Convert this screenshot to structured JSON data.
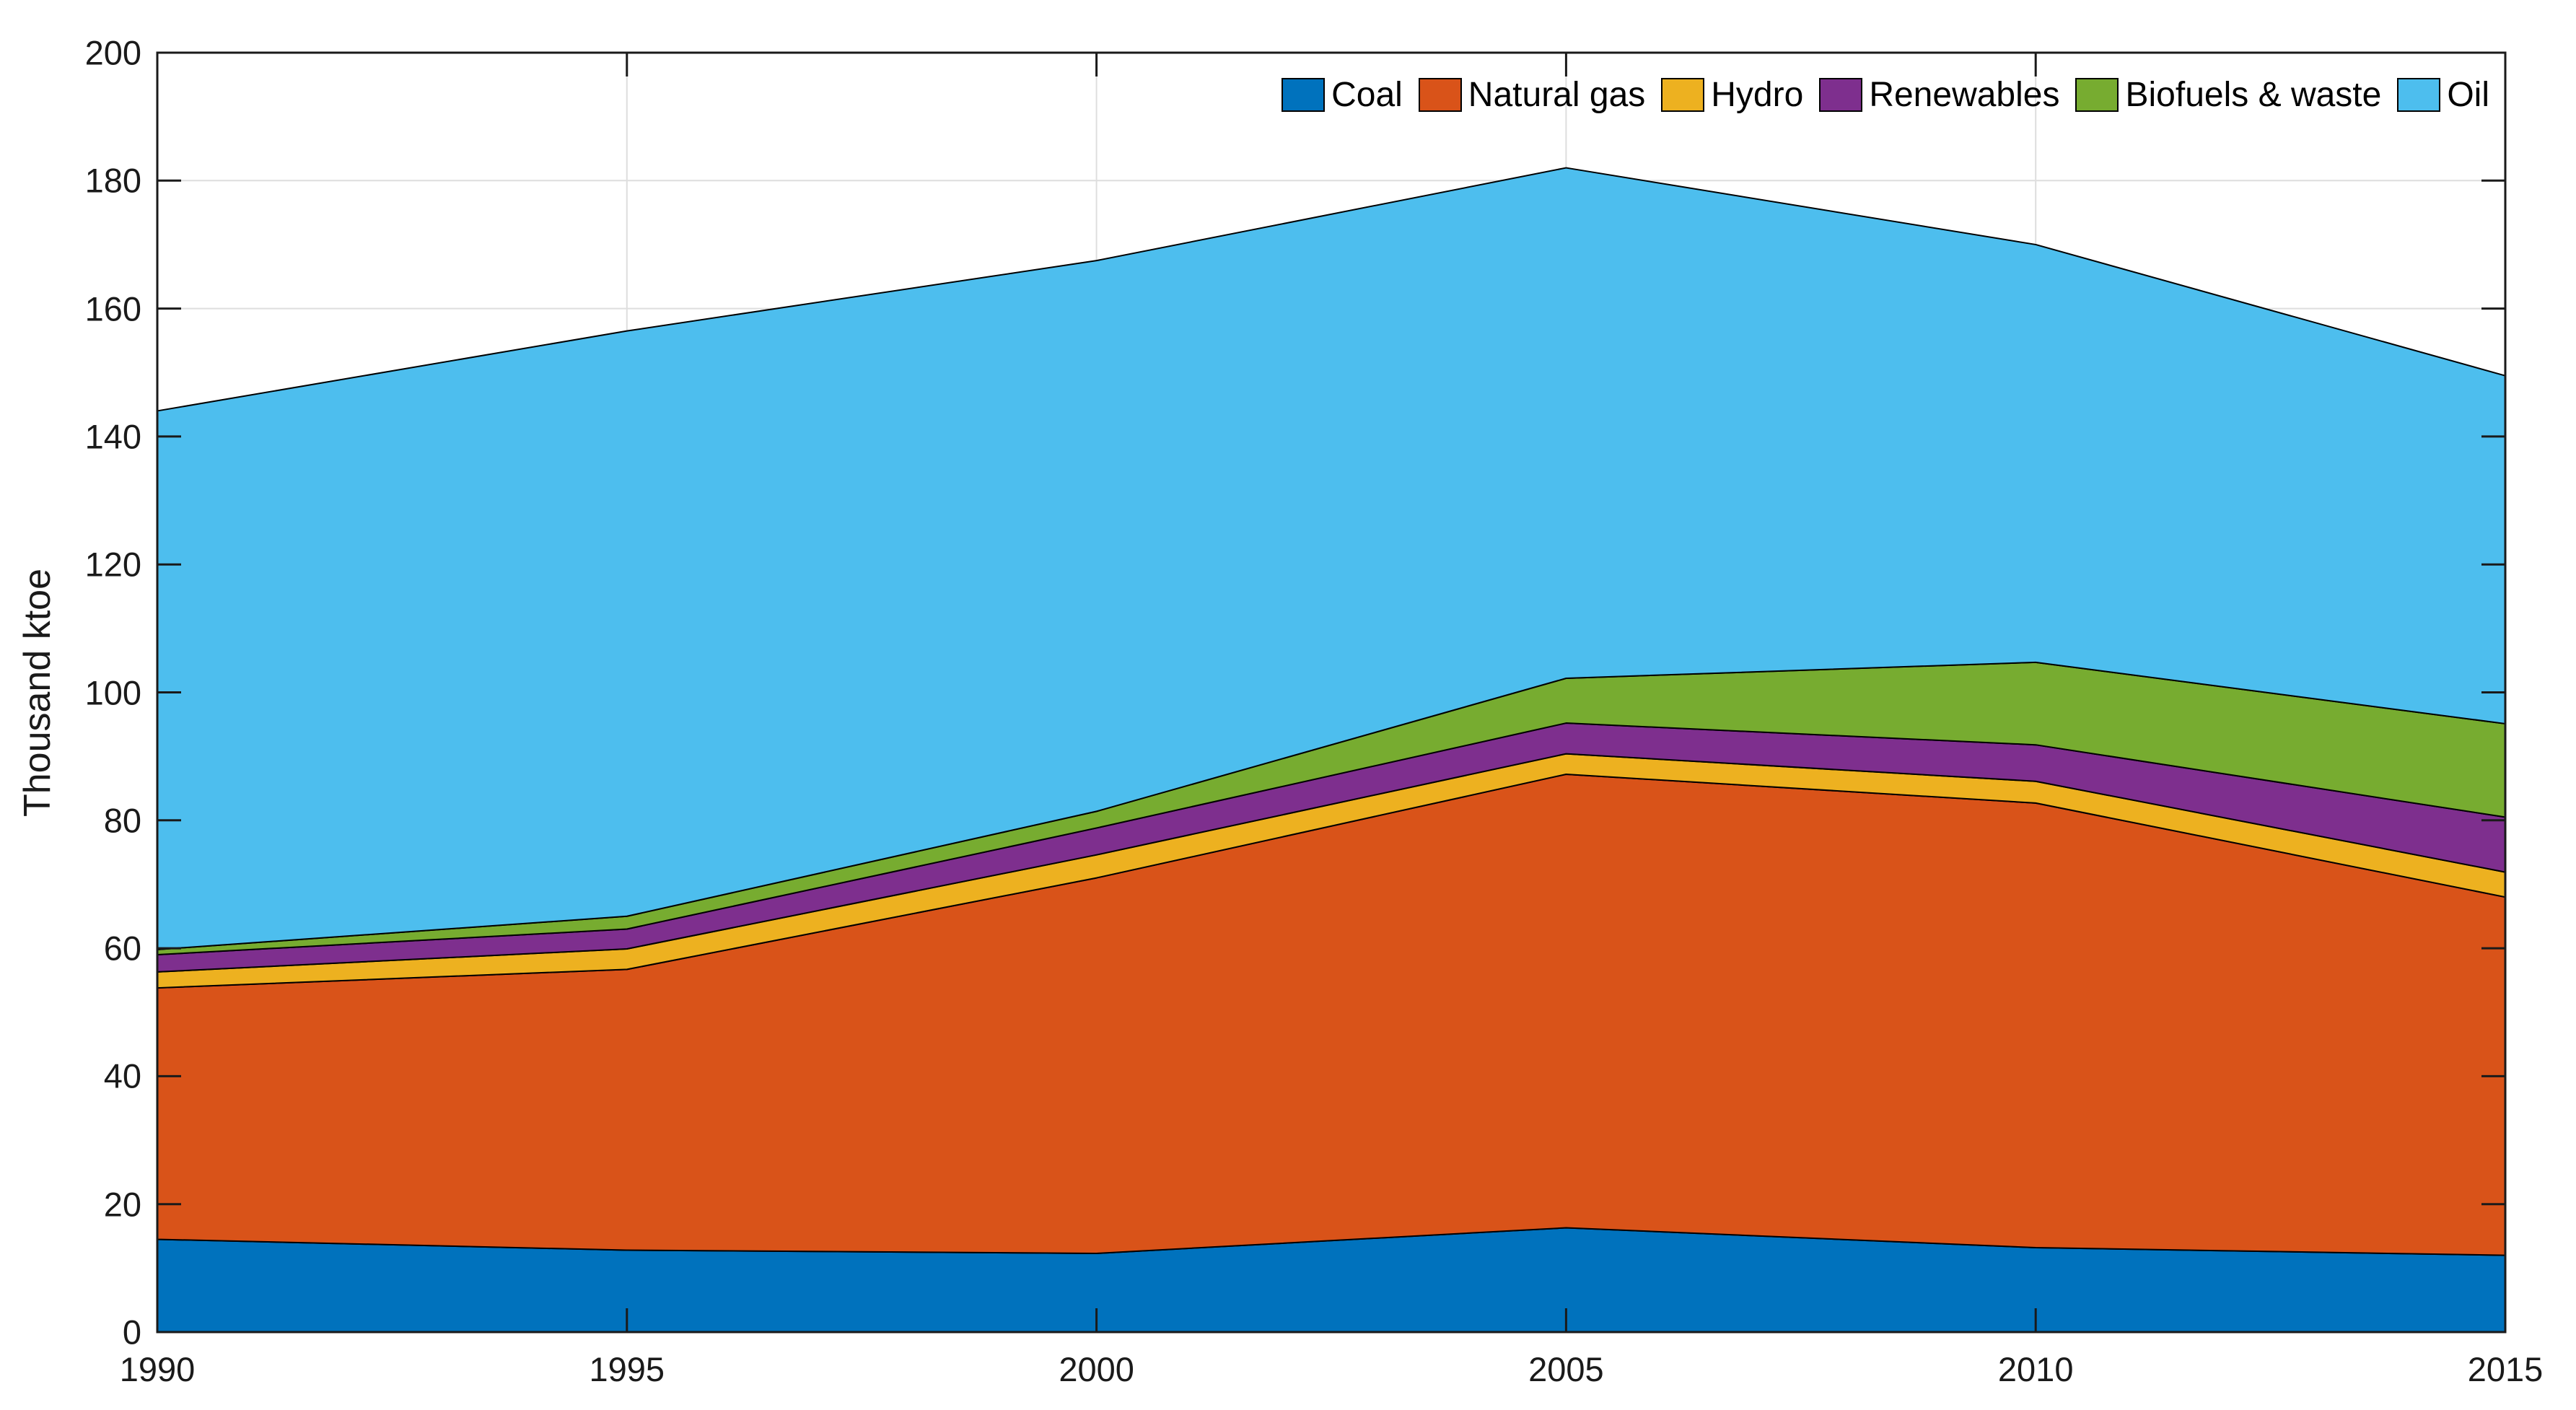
{
  "figure": {
    "y_axis_title": "Thousand ktoe"
  },
  "legend": {
    "position": "top-right-horizontal",
    "items": [
      {
        "label": "Coal",
        "color": "#0072BD"
      },
      {
        "label": "Natural gas",
        "color": "#D95319"
      },
      {
        "label": "Hydro",
        "color": "#EDB120"
      },
      {
        "label": "Renewables",
        "color": "#7E2F8E"
      },
      {
        "label": "Biofuels & waste",
        "color": "#77AC30"
      },
      {
        "label": "Oil",
        "color": "#4DBEEE"
      }
    ]
  },
  "axes": {
    "x_tick_labels": [
      "1990",
      "1995",
      "2000",
      "2005",
      "2010",
      "2015"
    ],
    "y_tick_labels": [
      "0",
      "20",
      "40",
      "60",
      "80",
      "100",
      "120",
      "140",
      "160",
      "180",
      "200"
    ],
    "box_color": "#1a1a1a",
    "grid_color": "#dedede",
    "area_edge_color": "#000000"
  },
  "chart_data": {
    "type": "area",
    "stacked": true,
    "title": "",
    "xlabel": "",
    "ylabel": "Thousand ktoe",
    "x": [
      1990,
      1995,
      2000,
      2005,
      2010,
      2015
    ],
    "xlim": [
      1990,
      2015
    ],
    "ylim": [
      0,
      200
    ],
    "ytick_step": 20,
    "grid": true,
    "legend_position": "top-right-horizontal",
    "units": "Thousand ktoe",
    "series": [
      {
        "name": "Coal",
        "color": "#0072BD",
        "values": [
          14.5,
          12.8,
          12.3,
          16.3,
          13.2,
          12.0
        ]
      },
      {
        "name": "Natural gas",
        "color": "#D95319",
        "values": [
          39.3,
          43.9,
          58.7,
          70.9,
          69.5,
          56.0
        ]
      },
      {
        "name": "Hydro",
        "color": "#EDB120",
        "values": [
          2.5,
          3.2,
          3.6,
          3.2,
          3.4,
          3.9
        ]
      },
      {
        "name": "Renewables",
        "color": "#7E2F8E",
        "values": [
          2.7,
          3.1,
          4.2,
          4.8,
          5.7,
          8.6
        ]
      },
      {
        "name": "Biofuels & waste",
        "color": "#77AC30",
        "values": [
          0.8,
          2.0,
          2.6,
          7.0,
          12.9,
          14.6
        ]
      },
      {
        "name": "Oil",
        "color": "#4DBEEE",
        "values": [
          84.2,
          91.5,
          86.1,
          79.8,
          65.3,
          54.4
        ]
      }
    ],
    "cumulative_tops": {
      "Coal": [
        14.5,
        12.8,
        12.3,
        16.3,
        13.2,
        12.0
      ],
      "Natural gas": [
        53.8,
        56.7,
        71.0,
        87.2,
        82.7,
        68.0
      ],
      "Hydro": [
        56.3,
        59.9,
        74.6,
        90.4,
        86.1,
        71.9
      ],
      "Renewables": [
        59.0,
        63.0,
        78.8,
        95.2,
        91.8,
        80.5
      ],
      "Biofuels & waste": [
        59.8,
        65.0,
        81.4,
        102.2,
        104.7,
        95.1
      ],
      "Oil": [
        144.0,
        156.5,
        167.5,
        182.0,
        170.0,
        149.5
      ]
    }
  }
}
